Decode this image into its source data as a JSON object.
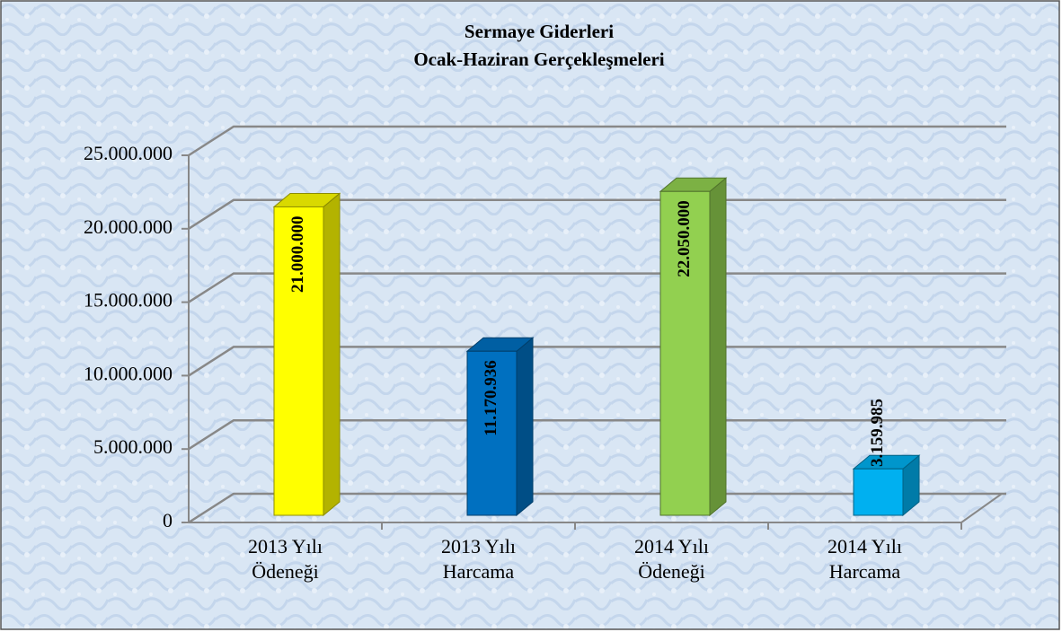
{
  "chart_data": {
    "type": "bar3d",
    "title": "Sermaye Giderleri",
    "subtitle": "Ocak-Haziran Gerçekleşmeleri",
    "categories": [
      "2013 Yılı Ödeneği",
      "2013 Yılı Harcama",
      "2014 Yılı Ödeneği",
      "2014 Yılı Harcama"
    ],
    "values": [
      21000000,
      11170936,
      22050000,
      3159985
    ],
    "value_labels": [
      "21.000.000",
      "11.170.936",
      "22.050.000",
      "3.159.985"
    ],
    "colors": [
      "#ffff00",
      "#0070c0",
      "#92d050",
      "#00b0f0"
    ],
    "ylim": [
      0,
      25000000
    ],
    "yticks": [
      0,
      {
        "value": 5000000,
        "label": "5.000.000"
      },
      {
        "value": 10000000,
        "label": "10.000.000"
      },
      {
        "value": 15000000,
        "label": "15.000.000"
      },
      {
        "value": 20000000,
        "label": "20.000.000"
      },
      {
        "value": 25000000,
        "label": "25.000.000"
      }
    ],
    "grid": true
  }
}
